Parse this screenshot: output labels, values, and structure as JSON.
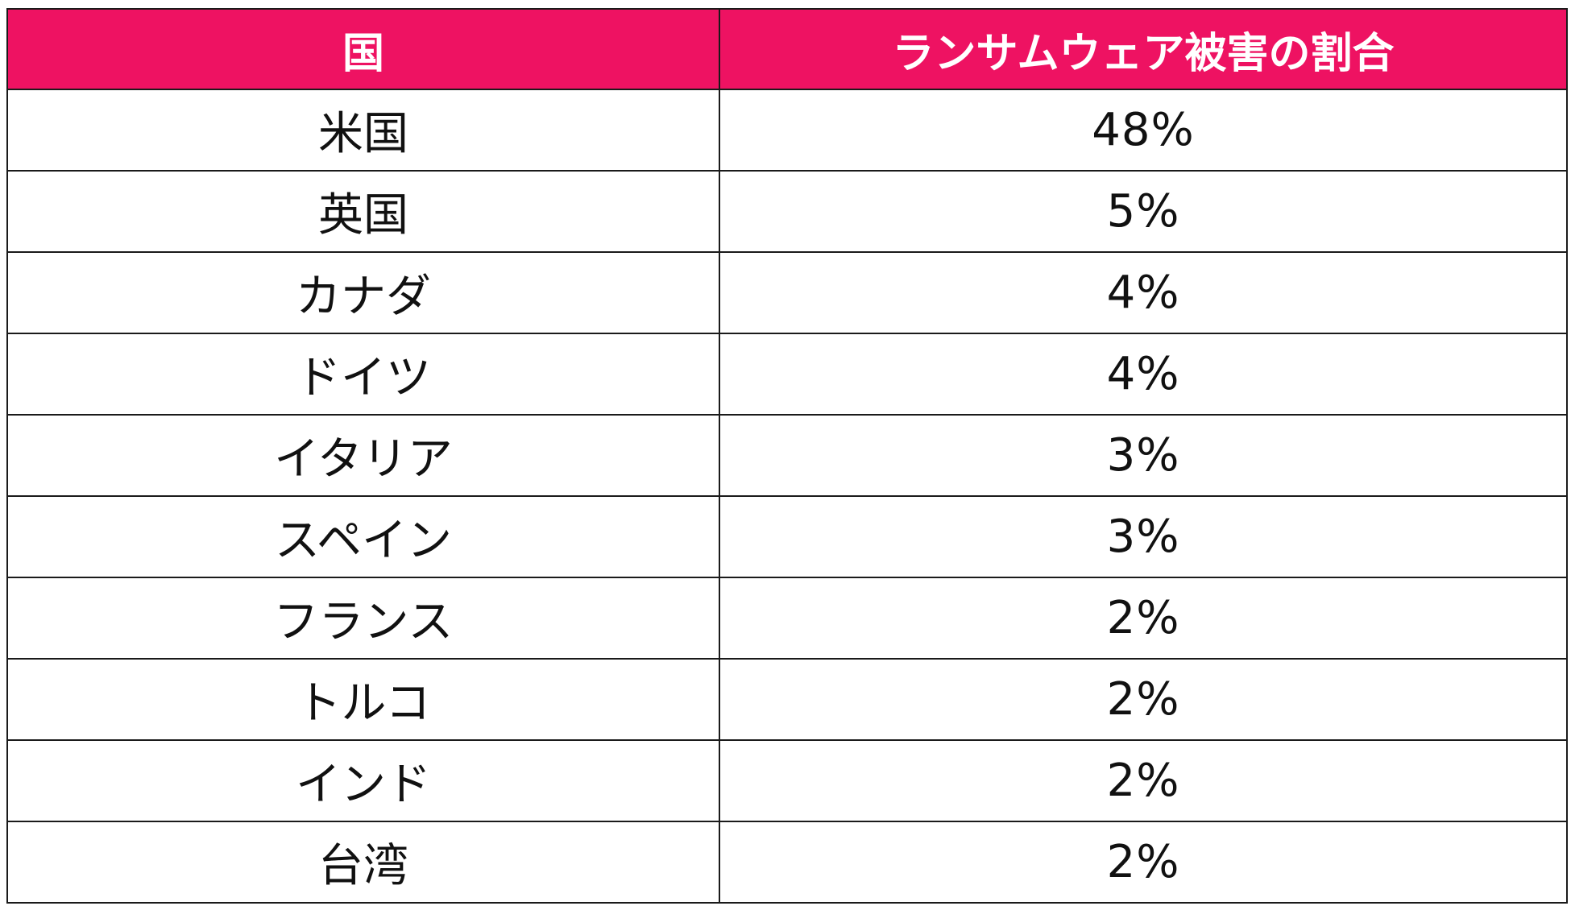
{
  "chart_data": {
    "type": "table",
    "title": "",
    "columns": [
      "国",
      "ランサムウェア被害の割合"
    ],
    "rows": [
      {
        "country": "米国",
        "value": "48%"
      },
      {
        "country": "英国",
        "value": "5%"
      },
      {
        "country": "カナダ",
        "value": "4%"
      },
      {
        "country": "ドイツ",
        "value": "4%"
      },
      {
        "country": "イタリア",
        "value": "3%"
      },
      {
        "country": "スペイン",
        "value": "3%"
      },
      {
        "country": "フランス",
        "value": "2%"
      },
      {
        "country": "トルコ",
        "value": "2%"
      },
      {
        "country": "インド",
        "value": "2%"
      },
      {
        "country": "台湾",
        "value": "2%"
      }
    ],
    "values": [
      48,
      5,
      4,
      4,
      3,
      3,
      2,
      2,
      2,
      2
    ],
    "unit": "%"
  },
  "colors": {
    "header_bg": "#ee1262",
    "header_text": "#ffffff",
    "border": "#1a1a1a",
    "cell_text": "#111111"
  }
}
